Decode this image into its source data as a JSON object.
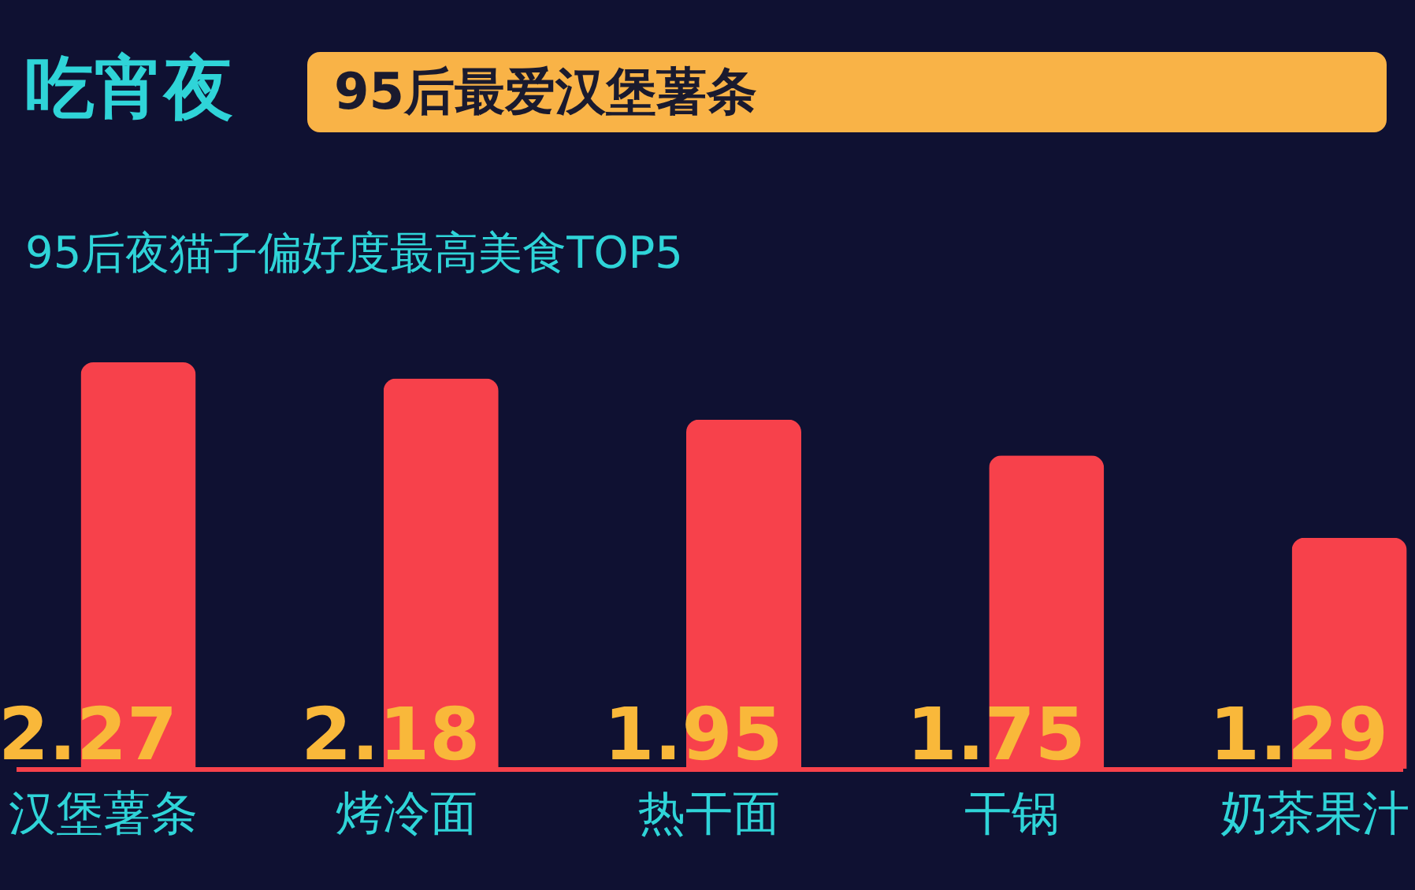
{
  "chart_data": {
    "type": "bar",
    "title": "吃宵夜",
    "subtitle": "95后最爱汉堡薯条",
    "annotations": [
      "95后夜猫子偏好度最高美食TOP5"
    ],
    "categories": [
      "汉堡薯条",
      "烤冷面",
      "热干面",
      "干锅",
      "奶茶果汁"
    ],
    "values": [
      2.27,
      2.18,
      1.95,
      1.75,
      1.29
    ],
    "color": "#f7414b",
    "data_labels": true
  }
}
